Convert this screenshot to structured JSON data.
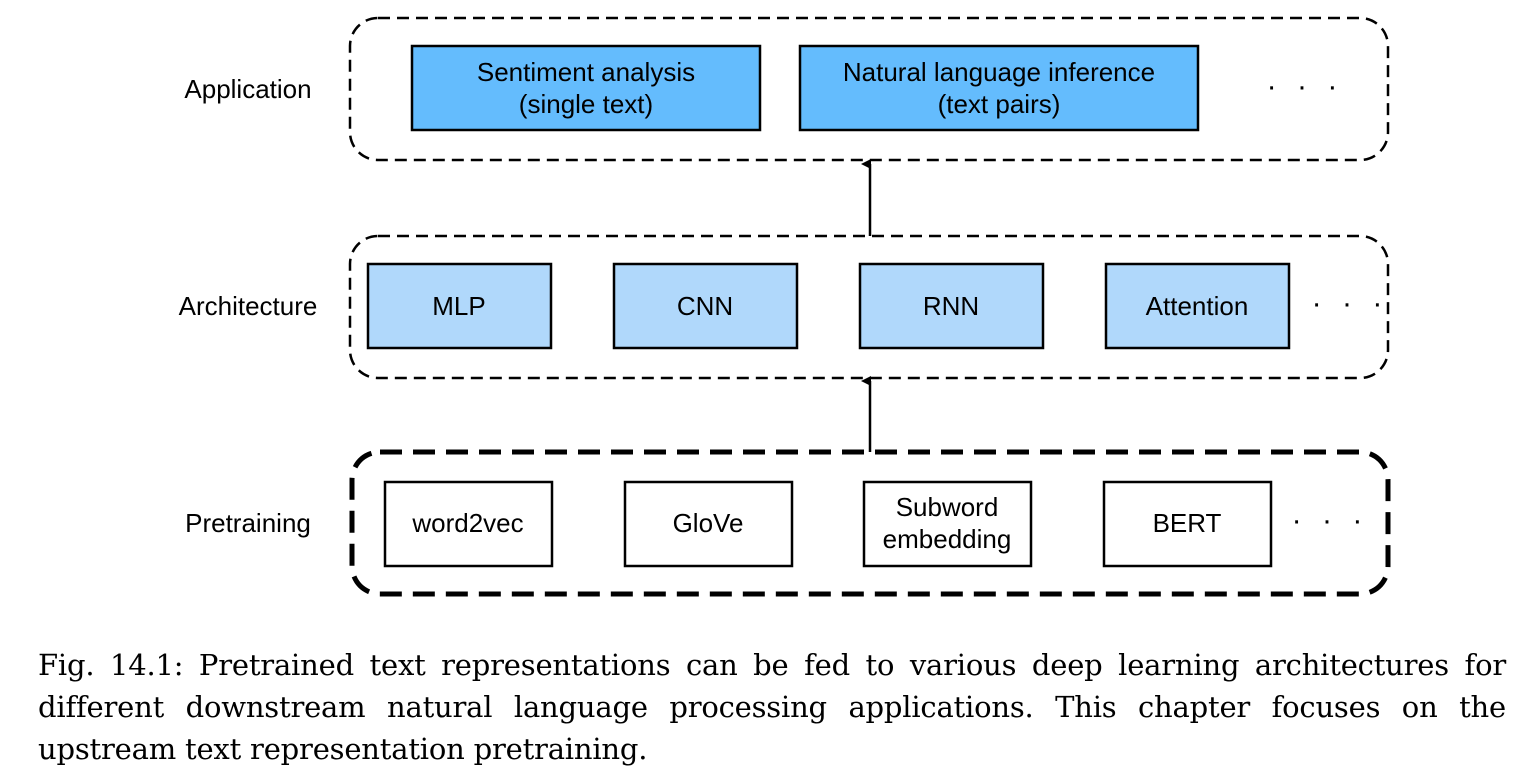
{
  "colors": {
    "application_fill": "#64bcfd",
    "architecture_fill": "#b0d8fb",
    "pretraining_fill": "#ffffff",
    "stroke": "#000000"
  },
  "layers": {
    "application": {
      "label": "Application",
      "boxes": [
        {
          "line1": "Sentiment analysis",
          "line2": "(single text)"
        },
        {
          "line1": "Natural language inference",
          "line2": "(text pairs)"
        }
      ],
      "more": "· · ·"
    },
    "architecture": {
      "label": "Architecture",
      "boxes": [
        {
          "line1": "MLP"
        },
        {
          "line1": "CNN"
        },
        {
          "line1": "RNN"
        },
        {
          "line1": "Attention"
        }
      ],
      "more": "· · ·"
    },
    "pretraining": {
      "label": "Pretraining",
      "boxes": [
        {
          "line1": "word2vec"
        },
        {
          "line1": "GloVe"
        },
        {
          "line1": "Subword",
          "line2": "embedding"
        },
        {
          "line1": "BERT"
        }
      ],
      "more": "· · ·"
    }
  },
  "caption": "Fig. 14.1: Pretrained text representations can be fed to various deep learning architectures for different downstream natural language processing applications. This chapter focuses on the upstream text representation pretraining."
}
